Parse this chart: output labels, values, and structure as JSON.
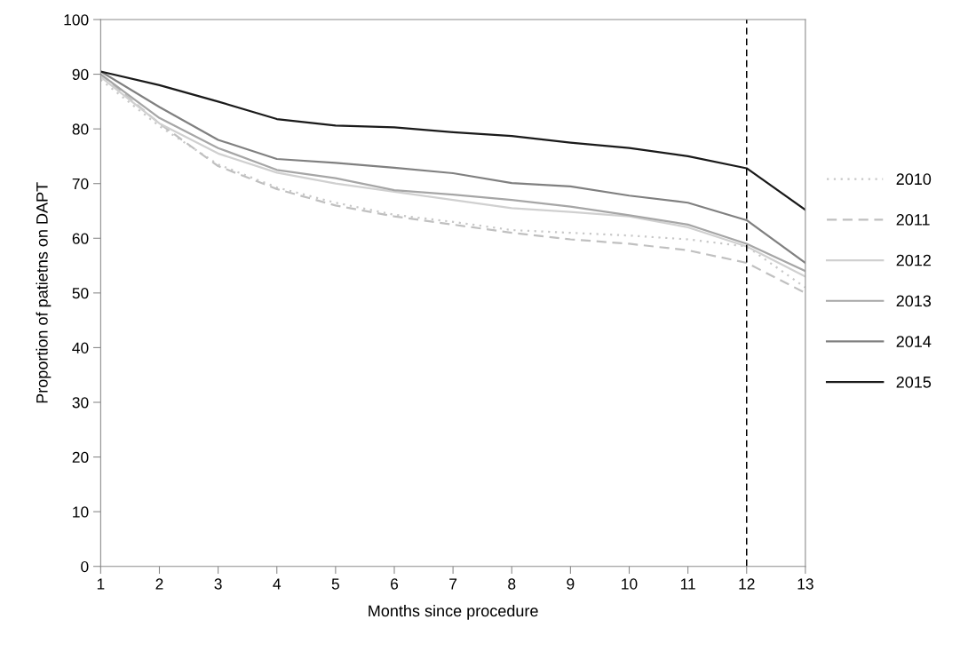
{
  "chart_data": {
    "type": "line",
    "xlabel": "Months since procedure",
    "ylabel": "Proportion of patietns on DAPT",
    "x": [
      1,
      2,
      3,
      4,
      5,
      6,
      7,
      8,
      9,
      10,
      11,
      12,
      13
    ],
    "xlim": [
      1,
      13
    ],
    "xticks": [
      1,
      2,
      3,
      4,
      5,
      6,
      7,
      8,
      9,
      10,
      11,
      12,
      13
    ],
    "ylim": [
      0,
      100
    ],
    "yticks": [
      0,
      10,
      20,
      30,
      40,
      50,
      60,
      70,
      80,
      90,
      100
    ],
    "grid": false,
    "legend": "right",
    "ref_lines": [
      {
        "axis": "x",
        "value": 12,
        "color": "#000000",
        "line_style": "dashed"
      }
    ],
    "series": [
      {
        "name": "2010",
        "color": "#c8c8c8",
        "line_style": "dotted",
        "values": [
          89,
          80.5,
          73.5,
          69.3,
          66.5,
          64.3,
          63,
          61.5,
          61,
          60.5,
          59.8,
          58.5,
          51
        ]
      },
      {
        "name": "2011",
        "color": "#c0c0c0",
        "line_style": "dashed",
        "values": [
          90,
          81,
          73.2,
          69,
          66,
          64,
          62.5,
          61,
          59.8,
          59,
          57.8,
          55.5,
          50
        ]
      },
      {
        "name": "2012",
        "color": "#d0d0d0",
        "line_style": "solid",
        "values": [
          89.5,
          81,
          75.5,
          72,
          70,
          68.5,
          67,
          65.5,
          64.8,
          64,
          62,
          58.5,
          53
        ]
      },
      {
        "name": "2013",
        "color": "#a6a6a6",
        "line_style": "solid",
        "values": [
          90,
          82,
          76.5,
          72.5,
          71,
          68.8,
          68,
          67,
          65.8,
          64.2,
          62.5,
          59,
          54
        ]
      },
      {
        "name": "2014",
        "color": "#808080",
        "line_style": "solid",
        "values": [
          90.5,
          84,
          78,
          74.5,
          73.8,
          72.9,
          71.9,
          70.1,
          69.5,
          67.8,
          66.5,
          63.3,
          55.5
        ]
      },
      {
        "name": "2015",
        "color": "#1a1a1a",
        "line_style": "solid",
        "values": [
          90.5,
          88,
          85,
          81.8,
          80.6,
          80.3,
          79.4,
          78.7,
          77.5,
          76.5,
          75,
          72.8,
          65.2
        ]
      }
    ]
  }
}
